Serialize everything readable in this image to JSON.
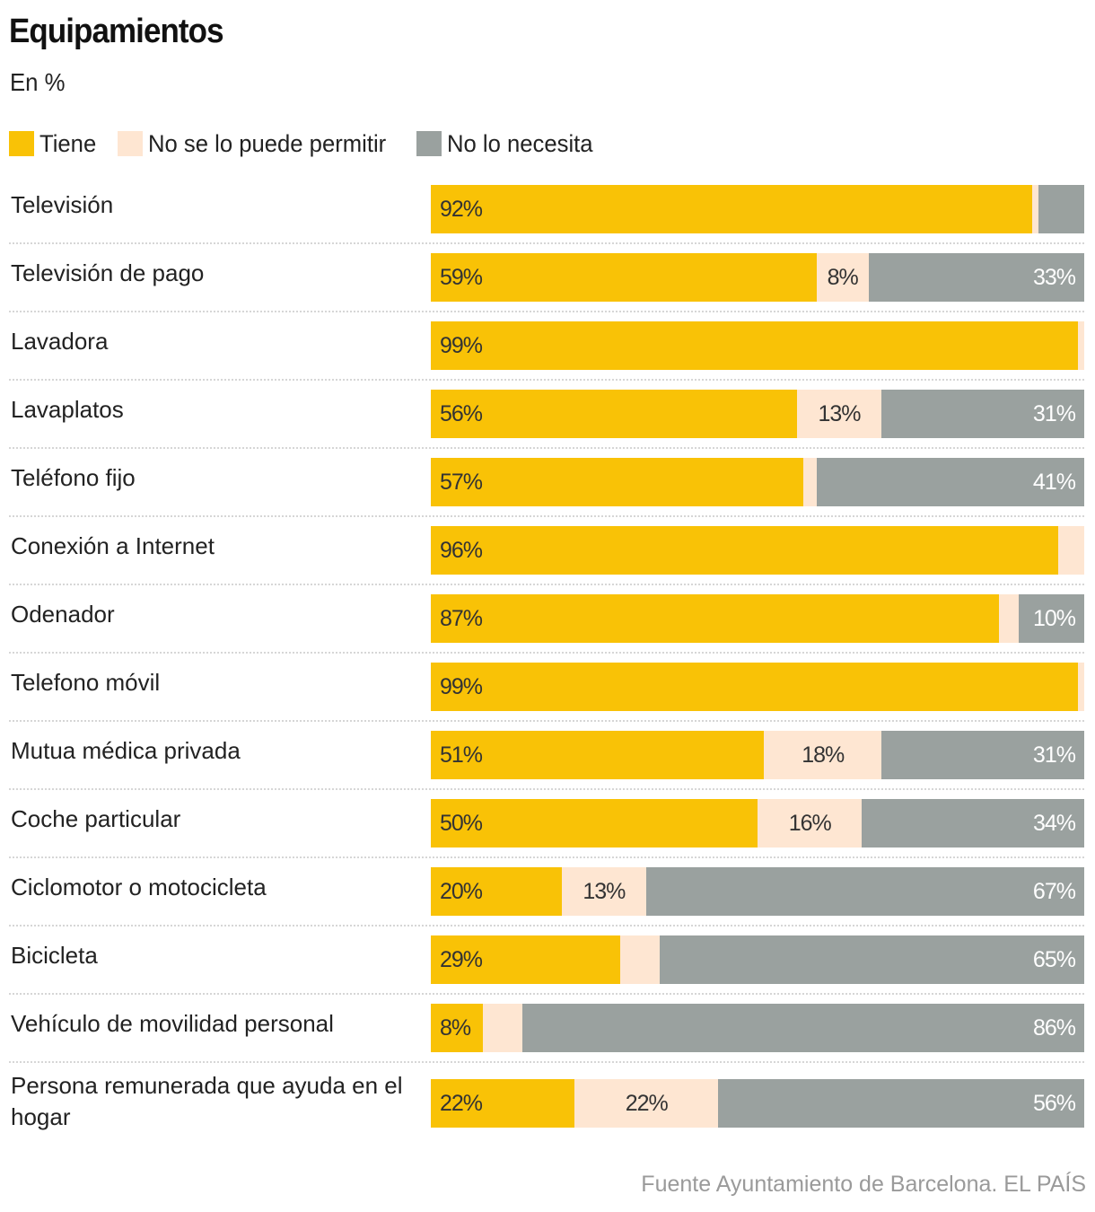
{
  "header": {
    "title": "Equipamientos",
    "subtitle": "En %"
  },
  "legend": [
    {
      "key": "tiene",
      "label": "Tiene",
      "color": "#F9C206"
    },
    {
      "key": "nopuede",
      "label": "No se lo puede permitir",
      "color": "#FEE6D2"
    },
    {
      "key": "nonecesita",
      "label": "No lo necesita",
      "color": "#9AA19F"
    }
  ],
  "source": "Fuente Ayuntamiento de Barcelona. EL PAÍS",
  "chart_data": {
    "type": "bar",
    "orientation": "horizontal",
    "stacked": true,
    "title": "Equipamientos",
    "subtitle": "En %",
    "xlabel": "",
    "ylabel": "",
    "xlim": [
      0,
      100
    ],
    "grid": false,
    "legend_position": "top-left",
    "categories": [
      "Televisión",
      "Televisión de pago",
      "Lavadora",
      "Lavaplatos",
      "Teléfono fijo",
      "Conexión a Internet",
      "Odenador",
      "Telefono móvil",
      "Mutua médica privada",
      "Coche particular",
      "Ciclomotor o motocicleta",
      "Bicicleta",
      "Vehículo de movilidad personal",
      "Persona remunerada que ayuda en el hogar"
    ],
    "series": [
      {
        "name": "Tiene",
        "color": "#F9C206",
        "values": [
          92,
          59,
          99,
          56,
          57,
          96,
          87,
          99,
          51,
          50,
          20,
          29,
          8,
          22
        ],
        "labels": [
          "92%",
          "59%",
          "99%",
          "56%",
          "57%",
          "96%",
          "87%",
          "99%",
          "51%",
          "50%",
          "20%",
          "29%",
          "8%",
          "22%"
        ]
      },
      {
        "name": "No se lo puede permitir",
        "color": "#FEE6D2",
        "values": [
          1,
          8,
          1,
          13,
          2,
          4,
          3,
          1,
          18,
          16,
          13,
          6,
          6,
          22
        ],
        "labels": [
          "",
          "8%",
          "",
          "13%",
          "",
          "",
          "",
          "",
          "18%",
          "16%",
          "13%",
          "",
          "",
          "22%"
        ]
      },
      {
        "name": "No lo necesita",
        "color": "#9AA19F",
        "values": [
          7,
          33,
          0,
          31,
          41,
          0,
          10,
          0,
          31,
          34,
          67,
          65,
          86,
          56
        ],
        "labels": [
          "",
          "33%",
          "",
          "31%",
          "41%",
          "",
          "10%",
          "",
          "31%",
          "34%",
          "67%",
          "65%",
          "86%",
          "56%"
        ]
      }
    ]
  }
}
